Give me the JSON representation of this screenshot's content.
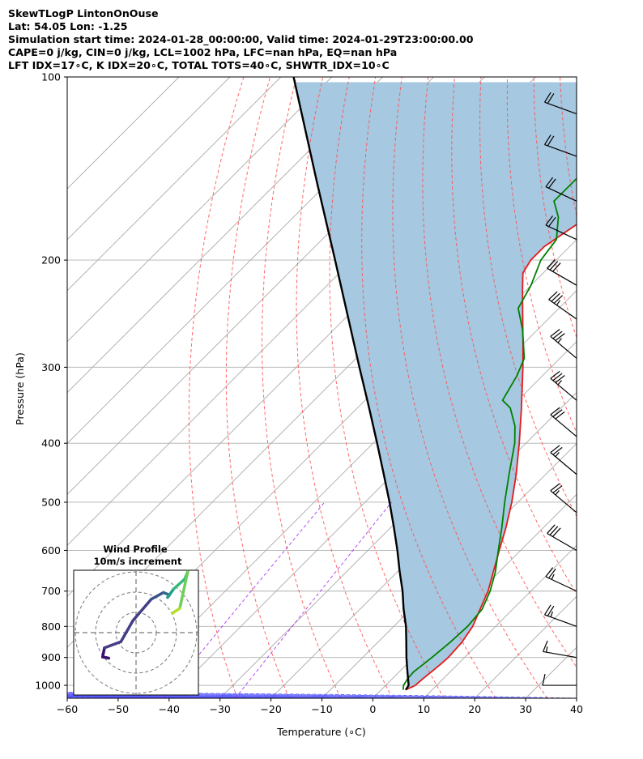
{
  "title_lines": [
    "SkewTLogP LintonOnOuse",
    "Lat: 54.05   Lon: -1.25",
    "Simulation start time: 2024-01-28_00:00:00, Valid time: 2024-01-29T23:00:00.00",
    "CAPE=0 j/kg, CIN=0 j/kg, LCL=1002 hPa, LFC=nan hPa, EQ=nan hPa",
    "LFT IDX=17∘C, K IDX=20∘C, TOTAL TOTS=40∘C, SHWTR_IDX=10∘C"
  ],
  "chart_data": {
    "type": "line",
    "subtype": "skew-t log-p",
    "xlabel": "Temperature (∘C)",
    "ylabel": "Pressure (hPa)",
    "xlim": [
      -60,
      40
    ],
    "ylim": [
      1050,
      100
    ],
    "y_scale": "log",
    "grid": true,
    "x_ticks": [
      -60,
      -50,
      -40,
      -30,
      -20,
      -10,
      0,
      10,
      20,
      30,
      40
    ],
    "x_tick_labels": [
      "−60",
      "−50",
      "−40",
      "−30",
      "−20",
      "−10",
      "0",
      "10",
      "20",
      "30",
      "40"
    ],
    "y_ticks": [
      100,
      200,
      300,
      400,
      500,
      600,
      700,
      800,
      900,
      1000
    ],
    "y_tick_labels": [
      "100",
      "200",
      "300",
      "400",
      "500",
      "600",
      "700",
      "800",
      "900",
      "1000"
    ],
    "colors": {
      "temperature": "#e41a1c",
      "dewpoint": "#008000",
      "parcel": "#000000",
      "shade": "#a6c8e0",
      "dry_adiabat": "#ff4d4d",
      "moist_adiabat": "#4d4dff",
      "mixing_ratio": "#a020f0",
      "isotherm": "#aaaaaa"
    },
    "series": [
      {
        "key": "temperature",
        "p": [
          1017,
          1000,
          975,
          950,
          925,
          900,
          850,
          800,
          750,
          700,
          650,
          600,
          550,
          500,
          450,
          400,
          350,
          300,
          275,
          250,
          225,
          210,
          200,
          190,
          175,
          160,
          145,
          130,
          115,
          100
        ],
        "t": [
          4.8,
          5.8,
          6.0,
          6.3,
          6.6,
          6.8,
          6.5,
          5.5,
          3.6,
          1.6,
          -1.2,
          -4.2,
          -7.4,
          -11.2,
          -15.8,
          -21.3,
          -27.8,
          -35.5,
          -40,
          -45,
          -50.5,
          -54,
          -55,
          -55,
          -53,
          -51,
          -50,
          -50,
          -50,
          -51
        ]
      },
      {
        "key": "dewpoint",
        "p": [
          1017,
          1000,
          975,
          950,
          925,
          900,
          850,
          800,
          750,
          700,
          650,
          600,
          550,
          500,
          450,
          400,
          375,
          350,
          340,
          310,
          290,
          260,
          240,
          220,
          200,
          185,
          170,
          160,
          140,
          120,
          100
        ],
        "t": [
          4.3,
          3.5,
          3.0,
          2.8,
          3.2,
          3.6,
          4.2,
          4.5,
          4.0,
          2.0,
          -0.8,
          -4.4,
          -8.2,
          -12.6,
          -17.2,
          -22.2,
          -25.5,
          -30,
          -33,
          -35,
          -37,
          -43,
          -48,
          -50,
          -53,
          -54,
          -58,
          -62,
          -62,
          -61,
          -61
        ]
      },
      {
        "key": "parcel",
        "p": [
          1017,
          1000,
          950,
          900,
          850,
          800,
          750,
          700,
          650,
          600,
          550,
          500,
          450,
          400,
          350,
          300,
          250,
          200,
          150,
          100
        ],
        "t": [
          4.8,
          4.5,
          1.6,
          -1.4,
          -4.4,
          -7.6,
          -11.4,
          -15.2,
          -19.6,
          -24.2,
          -29.4,
          -35.2,
          -41.8,
          -49.2,
          -57.7,
          -67.6,
          -79.2,
          -93.4,
          -111.8,
          -137.5
        ]
      }
    ],
    "wind_barbs": {
      "note": "wind barbs on right edge, all from roughly north-west",
      "p": [
        115,
        135,
        160,
        185,
        220,
        250,
        290,
        340,
        390,
        450,
        520,
        600,
        700,
        800,
        900,
        1000
      ],
      "speed_kt": [
        20,
        20,
        20,
        20,
        30,
        35,
        35,
        35,
        30,
        25,
        25,
        30,
        25,
        25,
        15,
        10
      ],
      "direction_deg": [
        290,
        290,
        295,
        295,
        300,
        305,
        310,
        310,
        310,
        310,
        310,
        300,
        295,
        290,
        280,
        270
      ]
    },
    "inset": {
      "title_lines": [
        "Wind Profile",
        "10m/s increment"
      ],
      "rings": 3,
      "hodograph": [
        [
          -0.45,
          -0.42
        ],
        [
          -0.55,
          -0.4
        ],
        [
          -0.52,
          -0.25
        ],
        [
          -0.25,
          -0.15
        ],
        [
          -0.05,
          0.2
        ],
        [
          0.25,
          0.55
        ],
        [
          0.45,
          0.66
        ],
        [
          0.55,
          0.62
        ],
        [
          0.52,
          0.58
        ],
        [
          0.62,
          0.72
        ],
        [
          0.8,
          0.88
        ],
        [
          0.85,
          1.0
        ],
        [
          0.72,
          0.4
        ],
        [
          0.6,
          0.32
        ]
      ]
    }
  }
}
